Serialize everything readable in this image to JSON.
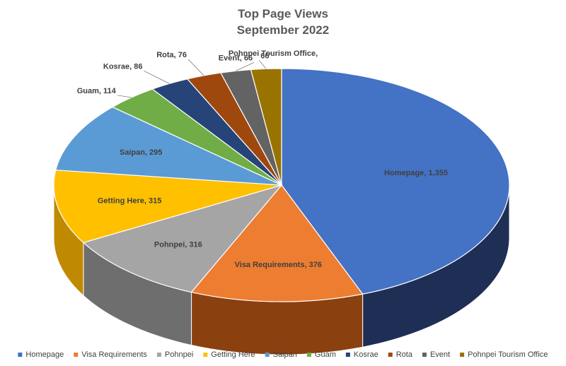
{
  "chart_data": {
    "type": "pie",
    "title": "Top Page Views",
    "subtitle": "September 2022",
    "legend_position": "bottom",
    "three_d": true,
    "slices": [
      {
        "name": "Homepage",
        "value": 1355,
        "label": "Homepage, 1,355",
        "color": "#4472C4",
        "side": "#1F2E55"
      },
      {
        "name": "Visa Requirements",
        "value": 376,
        "label": "Visa Requirements, 376",
        "color": "#ED7D31",
        "side": "#8B4010"
      },
      {
        "name": "Pohnpei",
        "value": 316,
        "label": "Pohnpei, 316",
        "color": "#A5A5A5",
        "side": "#6E6E6E"
      },
      {
        "name": "Getting Here",
        "value": 315,
        "label": "Getting Here, 315",
        "color": "#FFC000",
        "side": "#C08A00"
      },
      {
        "name": "Saipan",
        "value": 295,
        "label": "Saipan, 295",
        "color": "#5B9BD5",
        "side": "#30618F"
      },
      {
        "name": "Guam",
        "value": 114,
        "label": "Guam, 114",
        "color": "#70AD47",
        "side": "#44702A"
      },
      {
        "name": "Kosrae",
        "value": 86,
        "label": "Kosrae, 86",
        "color": "#264478",
        "side": "#142543"
      },
      {
        "name": "Rota",
        "value": 76,
        "label": "Rota, 76",
        "color": "#9E480E",
        "side": "#5E2A08"
      },
      {
        "name": "Event",
        "value": 66,
        "label": "Event, 66",
        "color": "#636363",
        "side": "#3A3A3A"
      },
      {
        "name": "Pohnpei Tourism Office",
        "value": 66,
        "label": "66",
        "color": "#997300",
        "side": "#5E4700"
      }
    ],
    "annotation_line1": "Pohnpei Tourism Office,"
  }
}
